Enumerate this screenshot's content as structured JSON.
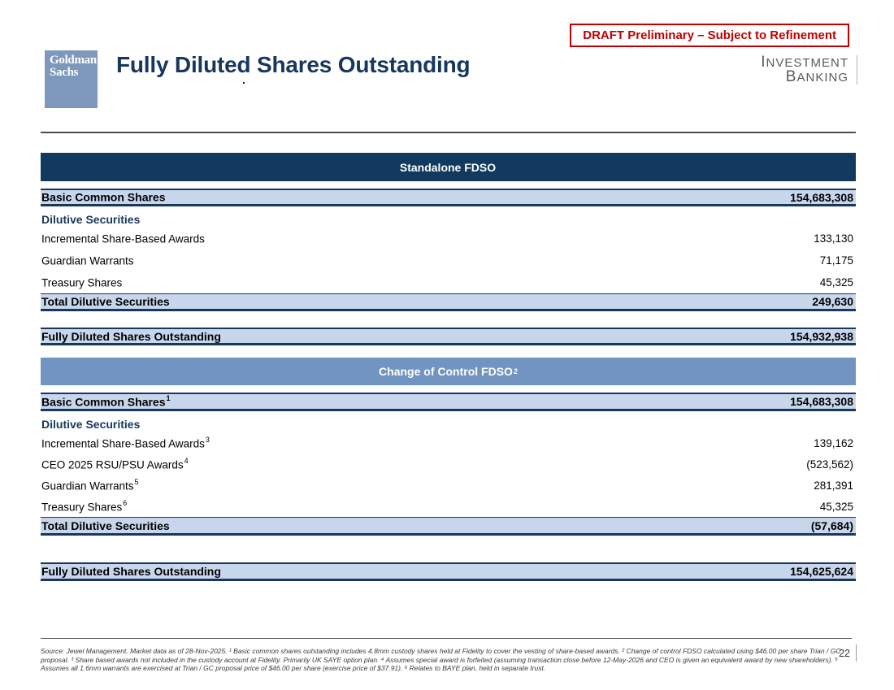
{
  "header": {
    "logo_line1": "Goldman",
    "logo_line2": "Sachs",
    "title": "Fully Diluted Shares Outstanding",
    "draft_badge": "DRAFT Preliminary – Subject to Refinement",
    "division_line1": "Investment",
    "division_line2": "Banking"
  },
  "colors": {
    "dark_navy_bar": "#123A5E",
    "steel_blue_bar": "#7294C1",
    "light_blue_row": "#C8D6EC",
    "navy_text": "#17375E",
    "draft_red": "#C00000",
    "logo_blue": "#7E98BC"
  },
  "tables": [
    {
      "header": "Standalone FDSO",
      "header_sup": "",
      "basic_row": {
        "label": "Basic Common Shares",
        "sup": "",
        "value": "154,683,308"
      },
      "section_label": "Dilutive Securities",
      "rows": [
        {
          "label": "Incremental Share-Based Awards",
          "sup": "",
          "value": "133,130"
        },
        {
          "label": "Guardian Warrants",
          "sup": "",
          "value": "71,175"
        },
        {
          "label": "Treasury Shares",
          "sup": "",
          "value": "45,325"
        }
      ],
      "total_row": {
        "label": "Total Dilutive Securities",
        "value": "249,630"
      },
      "fdso_row": {
        "label": "Fully Diluted Shares Outstanding",
        "value": "154,932,938"
      }
    },
    {
      "header": "Change of Control FDSO",
      "header_sup": "2",
      "basic_row": {
        "label": "Basic Common Shares",
        "sup": "1",
        "value": "154,683,308"
      },
      "section_label": "Dilutive Securities",
      "rows": [
        {
          "label": "Incremental Share-Based Awards",
          "sup": "3",
          "value": "139,162"
        },
        {
          "label": "CEO 2025 RSU/PSU Awards",
          "sup": "4",
          "value": "(523,562)"
        },
        {
          "label": "Guardian Warrants",
          "sup": "5",
          "value": "281,391"
        },
        {
          "label": "Treasury Shares",
          "sup": "6",
          "value": "45,325"
        }
      ],
      "total_row": {
        "label": "Total Dilutive Securities",
        "value": "(57,684)"
      },
      "fdso_row": {
        "label": "Fully Diluted Shares Outstanding",
        "value": "154,625,624"
      }
    }
  ],
  "footer": {
    "source_text": "Source: Jewel Management. Market data as of 28-Nov-2025. ¹ Basic common shares outstanding includes 4.8mm custody shares held at Fidelity to cover the vesting of share-based awards. ² Change of control FDSO calculated using $46.00 per share Trian / GC proposal. ³ Share based awards not included in the custody account at Fidelity. Primarily UK SAYE option plan. ⁴ Assumes special award is forfeited (assuming transaction close before 12-May-2026 and CEO is given an equivalent award by new shareholders). ⁵ Assumes all 1.6mm warrants are exercised at Trian / GC proposal price of $46.00 per share (exercise price of $37.91). ⁶ Relates to BAYE plan, held in separate trust.",
    "page_number": "22"
  }
}
